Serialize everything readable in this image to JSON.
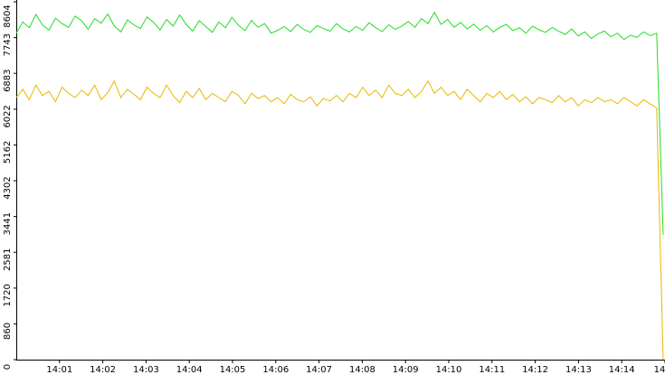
{
  "chart_data": {
    "type": "line",
    "xlim": [
      "14:00",
      "14:15"
    ],
    "xticks": [
      "14:01",
      "14:02",
      "14:03",
      "14:04",
      "14:05",
      "14:06",
      "14:07",
      "14:08",
      "14:09",
      "14:10",
      "14:11",
      "14:12",
      "14:13",
      "14:14",
      {
        "value": "14:15",
        "label": "14"
      }
    ],
    "ylim": [
      0,
      8604
    ],
    "yticks": [
      0,
      860,
      1720,
      2581,
      3441,
      4302,
      5162,
      6022,
      6883,
      7743,
      8604
    ],
    "grid": false,
    "series": [
      {
        "color": "#22dd22",
        "values": [
          7850,
          8120,
          7980,
          8300,
          8050,
          7920,
          8210,
          8080,
          7990,
          8260,
          8150,
          7940,
          8200,
          8090,
          8310,
          8020,
          7880,
          8170,
          8050,
          7960,
          8240,
          8110,
          7930,
          8180,
          8020,
          8290,
          8060,
          7900,
          8150,
          8010,
          7870,
          8120,
          7980,
          8230,
          8040,
          7910,
          8160,
          7990,
          8080,
          7850,
          7920,
          8010,
          7890,
          8060,
          7940,
          7870,
          8030,
          7960,
          7900,
          8080,
          7950,
          7880,
          8010,
          7920,
          8100,
          7980,
          7890,
          8050,
          7940,
          8020,
          8130,
          7990,
          8200,
          8080,
          8350,
          8060,
          8180,
          7990,
          8110,
          7950,
          8070,
          7920,
          8030,
          7880,
          7990,
          8060,
          7910,
          7980,
          7850,
          8020,
          7930,
          7870,
          7990,
          7900,
          7820,
          7950,
          7780,
          7880,
          7720,
          7830,
          7900,
          7760,
          7850,
          7700,
          7800,
          7750,
          7880,
          7790,
          7850,
          3000
        ]
      },
      {
        "color": "#e8b800",
        "values": [
          6300,
          6500,
          6250,
          6600,
          6350,
          6450,
          6200,
          6550,
          6400,
          6300,
          6480,
          6350,
          6600,
          6250,
          6420,
          6700,
          6300,
          6500,
          6380,
          6250,
          6550,
          6400,
          6300,
          6600,
          6350,
          6180,
          6450,
          6300,
          6520,
          6250,
          6400,
          6300,
          6200,
          6450,
          6350,
          6150,
          6400,
          6280,
          6350,
          6200,
          6300,
          6150,
          6380,
          6250,
          6200,
          6320,
          6100,
          6280,
          6220,
          6350,
          6200,
          6400,
          6300,
          6550,
          6350,
          6480,
          6300,
          6600,
          6400,
          6350,
          6500,
          6300,
          6450,
          6700,
          6400,
          6550,
          6350,
          6450,
          6250,
          6500,
          6350,
          6200,
          6400,
          6300,
          6450,
          6250,
          6380,
          6200,
          6320,
          6150,
          6300,
          6250,
          6180,
          6350,
          6200,
          6300,
          6100,
          6250,
          6180,
          6300,
          6200,
          6250,
          6150,
          6300,
          6200,
          6100,
          6250,
          6150,
          6050,
          0
        ]
      }
    ]
  }
}
